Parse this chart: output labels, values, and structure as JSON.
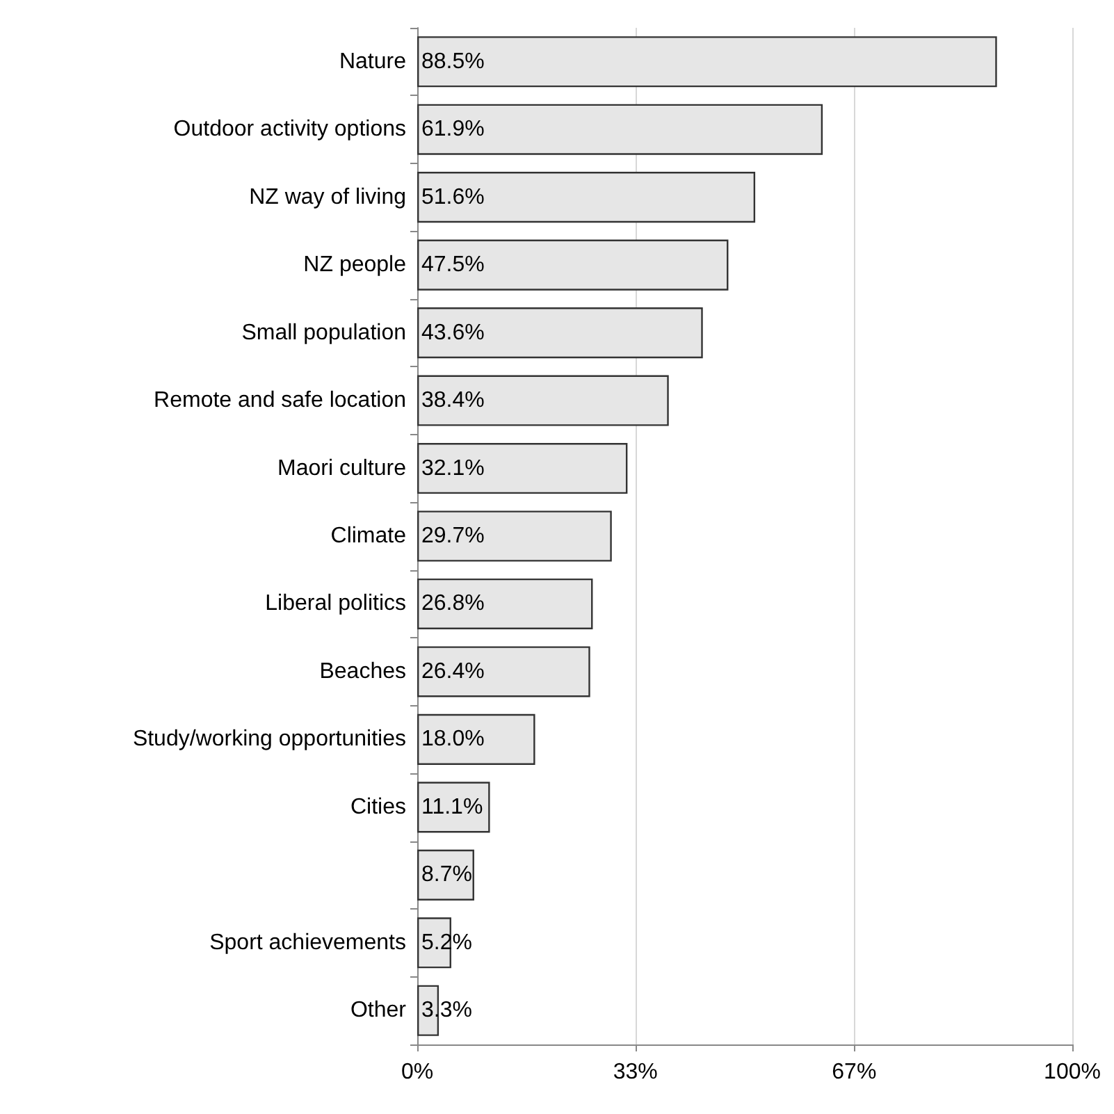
{
  "chart_data": {
    "type": "bar",
    "orientation": "horizontal",
    "categories": [
      "Nature",
      "Outdoor activity options",
      "NZ way of living",
      "NZ people",
      "Small population",
      "Remote and safe location",
      "Maori culture",
      "Climate",
      "Liberal politics",
      "Beaches",
      "Study/working opportunities",
      "Cities",
      null,
      "Sport achievements",
      "Other"
    ],
    "values": [
      88.5,
      61.9,
      51.6,
      47.5,
      43.6,
      38.4,
      32.1,
      29.7,
      26.8,
      26.4,
      18.0,
      11.1,
      8.7,
      5.2,
      3.3
    ],
    "value_labels": [
      "88.5%",
      "61.9%",
      "51.6%",
      "47.5%",
      "43.6%",
      "38.4%",
      "32.1%",
      "29.7%",
      "26.8%",
      "26.4%",
      "18.0%",
      "11.1%",
      "8.7%",
      "5.2%",
      "3.3%"
    ],
    "color": "#e6e6e6",
    "xlim": [
      0,
      100
    ],
    "xticks": [
      {
        "value": 0,
        "label": "0%"
      },
      {
        "value": 33.3,
        "label": "33%"
      },
      {
        "value": 66.7,
        "label": "67%"
      },
      {
        "value": 100,
        "label": "100%"
      }
    ],
    "grid": "x"
  }
}
